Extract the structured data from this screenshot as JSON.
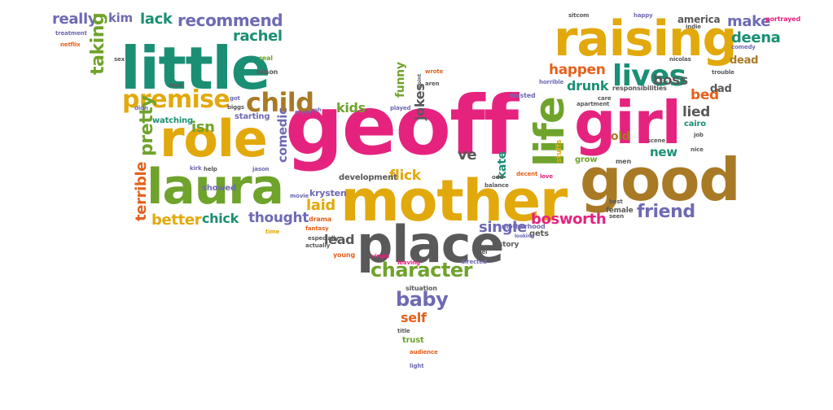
{
  "palette": {
    "teal": "#1b8f74",
    "yellow": "#e2a90c",
    "magenta": "#e5237f",
    "green": "#6fa32c",
    "purple": "#6e6ab3",
    "brown": "#a97a25",
    "gray": "#595959",
    "orange": "#e5601c"
  },
  "words": [
    {
      "text": "geoff",
      "color": "magenta"
    },
    {
      "text": "mother",
      "color": "yellow"
    },
    {
      "text": "girl",
      "color": "magenta"
    },
    {
      "text": "good",
      "color": "brown"
    },
    {
      "text": "place",
      "color": "gray"
    },
    {
      "text": "raising",
      "color": "yellow"
    },
    {
      "text": "little",
      "color": "teal"
    },
    {
      "text": "role",
      "color": "yellow"
    },
    {
      "text": "laura",
      "color": "green"
    },
    {
      "text": "life",
      "color": "green"
    },
    {
      "text": "lives",
      "color": "teal"
    },
    {
      "text": "premise",
      "color": "yellow"
    },
    {
      "text": "child",
      "color": "brown"
    },
    {
      "text": "character",
      "color": "green"
    },
    {
      "text": "baby",
      "color": "purple"
    },
    {
      "text": "friend",
      "color": "purple"
    },
    {
      "text": "bosworth",
      "color": "magenta"
    },
    {
      "text": "laid",
      "color": "yellow"
    },
    {
      "text": "lead",
      "color": "gray"
    },
    {
      "text": "single",
      "color": "purple"
    },
    {
      "text": "really",
      "color": "purple"
    },
    {
      "text": "kim",
      "color": "purple"
    },
    {
      "text": "lack",
      "color": "teal"
    },
    {
      "text": "recommend",
      "color": "purple"
    },
    {
      "text": "rachel",
      "color": "teal"
    },
    {
      "text": "taking",
      "color": "green"
    },
    {
      "text": "pretty",
      "color": "green"
    },
    {
      "text": "terrible",
      "color": "orange"
    },
    {
      "text": "better",
      "color": "yellow"
    },
    {
      "text": "chick",
      "color": "teal"
    },
    {
      "text": "thought",
      "color": "purple"
    },
    {
      "text": "isn",
      "color": "green"
    },
    {
      "text": "comedic",
      "color": "purple"
    },
    {
      "text": "kids",
      "color": "green"
    },
    {
      "text": "jokes",
      "color": "gray"
    },
    {
      "text": "funny",
      "color": "green"
    },
    {
      "text": "flick",
      "color": "yellow"
    },
    {
      "text": "ve",
      "color": "gray"
    },
    {
      "text": "self",
      "color": "orange"
    },
    {
      "text": "happen",
      "color": "orange"
    },
    {
      "text": "drunk",
      "color": "teal"
    },
    {
      "text": "boss",
      "color": "gray"
    },
    {
      "text": "make",
      "color": "purple"
    },
    {
      "text": "deena",
      "color": "teal"
    },
    {
      "text": "bed",
      "color": "orange"
    },
    {
      "text": "lied",
      "color": "gray"
    },
    {
      "text": "new",
      "color": "teal"
    },
    {
      "text": "old",
      "color": "brown"
    },
    {
      "text": "kate",
      "color": "teal"
    },
    {
      "text": "dead",
      "color": "brown"
    },
    {
      "text": "dad",
      "color": "gray"
    },
    {
      "text": "america",
      "color": "gray"
    },
    {
      "text": "portrayed",
      "color": "magenta"
    },
    {
      "text": "cairo",
      "color": "teal"
    },
    {
      "text": "krysten",
      "color": "purple"
    },
    {
      "text": "development",
      "color": "gray"
    },
    {
      "text": "watching",
      "color": "teal"
    },
    {
      "text": "starting",
      "color": "purple"
    },
    {
      "text": "showed",
      "color": "purple"
    },
    {
      "text": "female",
      "color": "gray"
    },
    {
      "text": "trust",
      "color": "green"
    },
    {
      "text": "stuffs",
      "color": "yellow"
    },
    {
      "text": "drama",
      "color": "orange"
    },
    {
      "text": "story",
      "color": "gray"
    },
    {
      "text": "gets",
      "color": "gray"
    },
    {
      "text": "young",
      "color": "orange"
    },
    {
      "text": "grow",
      "color": "green"
    },
    {
      "text": "men",
      "color": "gray"
    },
    {
      "text": "responsibilities",
      "color": "gray"
    },
    {
      "text": "situation",
      "color": "gray"
    },
    {
      "text": "bilson",
      "color": "gray"
    },
    {
      "text": "real",
      "color": "green"
    },
    {
      "text": "motherhood",
      "color": "purple"
    },
    {
      "text": "wasted",
      "color": "purple"
    },
    {
      "text": "sitcom",
      "color": "gray"
    },
    {
      "text": "happy",
      "color": "purple"
    },
    {
      "text": "indie",
      "color": "gray"
    },
    {
      "text": "comedy",
      "color": "purple"
    },
    {
      "text": "trouble",
      "color": "gray"
    },
    {
      "text": "nicolas",
      "color": "gray"
    },
    {
      "text": "horrible",
      "color": "purple"
    },
    {
      "text": "apartment",
      "color": "gray"
    },
    {
      "text": "care",
      "color": "gray"
    },
    {
      "text": "treatment",
      "color": "purple"
    },
    {
      "text": "netflix",
      "color": "orange"
    },
    {
      "text": "sex",
      "color": "gray"
    },
    {
      "text": "wrote",
      "color": "orange"
    },
    {
      "text": "aren",
      "color": "gray"
    },
    {
      "text": "point",
      "color": "gray"
    },
    {
      "text": "played",
      "color": "purple"
    },
    {
      "text": "got",
      "color": "purple"
    },
    {
      "text": "ugh",
      "color": "purple"
    },
    {
      "text": "enjoy",
      "color": "purple"
    },
    {
      "text": "biggs",
      "color": "gray"
    },
    {
      "text": "didn",
      "color": "purple"
    },
    {
      "text": "look",
      "color": "gray"
    },
    {
      "text": "kirk",
      "color": "purple"
    },
    {
      "text": "help",
      "color": "gray"
    },
    {
      "text": "jason",
      "color": "purple"
    },
    {
      "text": "movie",
      "color": "purple"
    },
    {
      "text": "time",
      "color": "yellow"
    },
    {
      "text": "fantasy",
      "color": "orange"
    },
    {
      "text": "especially",
      "color": "gray"
    },
    {
      "text": "actually",
      "color": "gray"
    },
    {
      "text": "virgin",
      "color": "magenta"
    },
    {
      "text": "leaving",
      "color": "magenta"
    },
    {
      "text": "feel",
      "color": "gray"
    },
    {
      "text": "directed",
      "color": "purple"
    },
    {
      "text": "looking",
      "color": "purple"
    },
    {
      "text": "odd",
      "color": "gray"
    },
    {
      "text": "balance",
      "color": "gray"
    },
    {
      "text": "decent",
      "color": "orange"
    },
    {
      "text": "love",
      "color": "magenta"
    },
    {
      "text": "best",
      "color": "gray"
    },
    {
      "text": "seen",
      "color": "gray"
    },
    {
      "text": "scene",
      "color": "gray"
    },
    {
      "text": "nice",
      "color": "gray"
    },
    {
      "text": "job",
      "color": "gray"
    },
    {
      "text": "title",
      "color": "gray"
    },
    {
      "text": "audience",
      "color": "orange"
    },
    {
      "text": "light",
      "color": "purple"
    },
    {
      "text": "don",
      "color": "orange"
    }
  ]
}
